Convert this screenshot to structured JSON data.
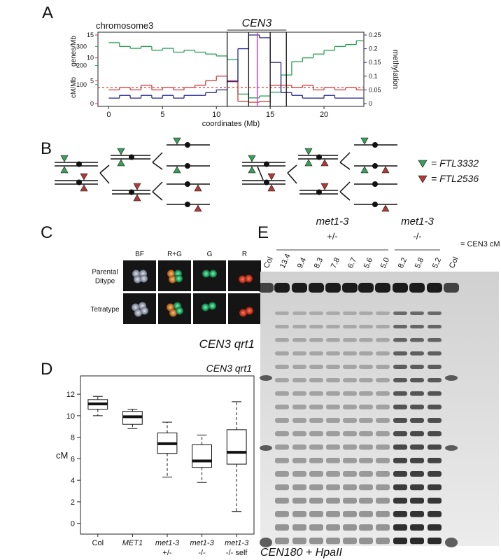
{
  "panels": [
    "A",
    "B",
    "C",
    "D",
    "E"
  ],
  "chart_data": [
    {
      "type": "line",
      "title": "chromosome3",
      "annotation": "CEN3",
      "x": [
        0,
        1,
        2,
        3,
        4,
        5,
        6,
        7,
        8,
        9,
        10,
        11,
        12,
        13,
        14,
        15,
        16,
        17,
        18,
        19,
        20,
        21,
        22,
        23
      ],
      "xlim": [
        -1,
        23.7
      ],
      "xticks": [
        0,
        5,
        10,
        15,
        20
      ],
      "xlabel": "coordinates (Mb)",
      "ylabel": "cM/Mb",
      "ylim": [
        0,
        15
      ],
      "yticks": [
        0,
        5,
        10,
        15
      ],
      "y3label": "genes/Mb",
      "y3lim": [
        0,
        360
      ],
      "y3ticks": [
        100,
        200,
        300
      ],
      "y2label": "methylation",
      "y2lim": [
        0,
        0.25
      ],
      "y2ticks": [
        0,
        0.05,
        0.1,
        0.15,
        0.2,
        0.25
      ],
      "series": [
        {
          "name": "genes/Mb",
          "color": "#23a052",
          "axis": "y3",
          "values": [
            320,
            300,
            290,
            300,
            280,
            290,
            270,
            280,
            270,
            260,
            250,
            230,
            50,
            30,
            40,
            60,
            150,
            220,
            240,
            260,
            280,
            300,
            310,
            330
          ]
        },
        {
          "name": "cM/Mb",
          "color": "#d83a3a",
          "axis": "y",
          "values": [
            3,
            3.5,
            3,
            4,
            3,
            3.5,
            3,
            3.5,
            4,
            5,
            6,
            5,
            0.5,
            0.3,
            0.5,
            4,
            4,
            3.5,
            4,
            3,
            3.5,
            3,
            3.5,
            3
          ]
        },
        {
          "name": "methylation",
          "color": "#2b2b8f",
          "axis": "y2",
          "values": [
            0.02,
            0.03,
            0.02,
            0.03,
            0.02,
            0.03,
            0.02,
            0.03,
            0.03,
            0.04,
            0.05,
            0.08,
            0.2,
            0.25,
            0.24,
            0.15,
            0.04,
            0.03,
            0.02,
            0.02,
            0.03,
            0.02,
            0.02,
            0.02
          ]
        }
      ],
      "reference_line": 3.5,
      "reference_color": "#d83a3a",
      "boundaries": [
        11,
        13,
        15,
        16.5
      ],
      "boundary_color": "#111111",
      "marker_line": 13.8,
      "marker_color": "#d63cc8"
    },
    {
      "type": "box",
      "title": "CEN3 qrt1",
      "ylabel": "cM",
      "categories": [
        [
          "Col"
        ],
        [
          "MET1"
        ],
        [
          "met1-3",
          "+/-"
        ],
        [
          "met1-3",
          "-/-"
        ],
        [
          "met1-3",
          "-/- self"
        ]
      ],
      "italic": [
        false,
        true,
        true,
        true,
        true
      ],
      "boxes": [
        {
          "min": 10,
          "q1": 10.6,
          "median": 11.1,
          "q3": 11.5,
          "max": 11.8
        },
        {
          "min": 8.8,
          "q1": 9.2,
          "median": 9.9,
          "q3": 10.4,
          "max": 10.6
        },
        {
          "min": 4.3,
          "q1": 6.5,
          "median": 7.4,
          "q3": 8.4,
          "max": 9.4
        },
        {
          "min": 3.8,
          "q1": 5.2,
          "median": 5.8,
          "q3": 7.3,
          "max": 8.2
        },
        {
          "min": 1.1,
          "q1": 5.5,
          "median": 6.6,
          "q3": 8.7,
          "max": 11.3
        }
      ],
      "ylim": [
        -1,
        13.7
      ],
      "yticks": [
        0,
        2,
        4,
        6,
        8,
        10,
        12
      ]
    }
  ],
  "diagram": {
    "legend": [
      {
        "label": "= FTL3332",
        "color": "#3a9e5c"
      },
      {
        "label": "= FTL2536",
        "color": "#b03a3a"
      }
    ]
  },
  "microscopy": {
    "columns": [
      "BF",
      "R+G",
      "G",
      "R"
    ],
    "rows": [
      [
        "Parental",
        "Ditype"
      ],
      [
        "Tetratype"
      ]
    ],
    "caption": "CEN3 qrt1"
  },
  "gel": {
    "groups": [
      {
        "label": "met1-3",
        "genotype": "+/-"
      },
      {
        "label": "met1-3",
        "genotype": "-/-"
      }
    ],
    "lanes": [
      "Col",
      "13.4",
      "9.4",
      "8.3",
      "7.8",
      "6.7",
      "5.6",
      "5.0",
      "8.2",
      "5.8",
      "5.2",
      "Col"
    ],
    "lane_color": "#2a7fb8",
    "lane_unit": "= CEN3 cM",
    "caption": "CEN180 + HpaII"
  }
}
